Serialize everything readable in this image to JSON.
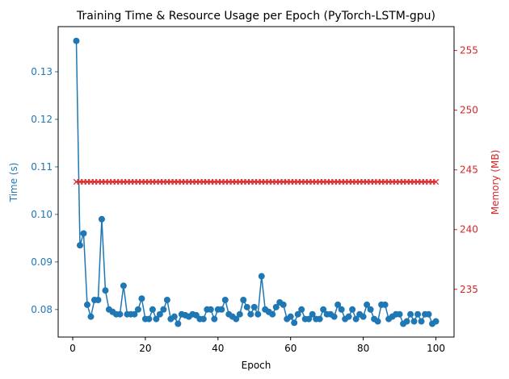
{
  "chart_data": {
    "type": "line",
    "title": "Training Time & Resource Usage per Epoch (PyTorch-LSTM-gpu)",
    "xlabel": "Epoch",
    "ylabel_left": "Time (s)",
    "ylabel_right": "Memory (MB)",
    "xlim": [
      -4,
      105
    ],
    "ylim_left": [
      0.0742,
      0.1395
    ],
    "ylim_right": [
      231.0,
      257.0
    ],
    "x_ticks": [
      0,
      20,
      40,
      60,
      80,
      100
    ],
    "y_left_ticks": [
      0.08,
      0.09,
      0.1,
      0.11,
      0.12,
      0.13
    ],
    "y_right_ticks": [
      235,
      240,
      245,
      250,
      255
    ],
    "colors": {
      "time": "#1f77b4",
      "memory": "#d62728",
      "axis": "#000000"
    },
    "x": [
      1,
      2,
      3,
      4,
      5,
      6,
      7,
      8,
      9,
      10,
      11,
      12,
      13,
      14,
      15,
      16,
      17,
      18,
      19,
      20,
      21,
      22,
      23,
      24,
      25,
      26,
      27,
      28,
      29,
      30,
      31,
      32,
      33,
      34,
      35,
      36,
      37,
      38,
      39,
      40,
      41,
      42,
      43,
      44,
      45,
      46,
      47,
      48,
      49,
      50,
      51,
      52,
      53,
      54,
      55,
      56,
      57,
      58,
      59,
      60,
      61,
      62,
      63,
      64,
      65,
      66,
      67,
      68,
      69,
      70,
      71,
      72,
      73,
      74,
      75,
      76,
      77,
      78,
      79,
      80,
      81,
      82,
      83,
      84,
      85,
      86,
      87,
      88,
      89,
      90,
      91,
      92,
      93,
      94,
      95,
      96,
      97,
      98,
      99,
      100
    ],
    "series": [
      {
        "name": "Time (s)",
        "axis": "left",
        "marker": "circle",
        "values": [
          0.1365,
          0.0935,
          0.096,
          0.081,
          0.0785,
          0.082,
          0.082,
          0.099,
          0.084,
          0.08,
          0.0795,
          0.079,
          0.079,
          0.085,
          0.079,
          0.079,
          0.079,
          0.08,
          0.0823,
          0.078,
          0.078,
          0.08,
          0.078,
          0.079,
          0.08,
          0.082,
          0.078,
          0.0785,
          0.077,
          0.079,
          0.0788,
          0.0785,
          0.079,
          0.0788,
          0.078,
          0.078,
          0.08,
          0.08,
          0.078,
          0.08,
          0.08,
          0.082,
          0.079,
          0.0785,
          0.078,
          0.079,
          0.082,
          0.0805,
          0.079,
          0.0805,
          0.079,
          0.087,
          0.08,
          0.0795,
          0.079,
          0.0805,
          0.0815,
          0.081,
          0.078,
          0.0785,
          0.0772,
          0.079,
          0.08,
          0.078,
          0.078,
          0.079,
          0.078,
          0.078,
          0.08,
          0.079,
          0.079,
          0.0785,
          0.081,
          0.08,
          0.078,
          0.0785,
          0.08,
          0.078,
          0.079,
          0.0785,
          0.081,
          0.08,
          0.078,
          0.0775,
          0.081,
          0.081,
          0.078,
          0.0785,
          0.079,
          0.079,
          0.077,
          0.0775,
          0.079,
          0.0775,
          0.079,
          0.0775,
          0.079,
          0.079,
          0.077,
          0.0775
        ]
      },
      {
        "name": "Memory (MB)",
        "axis": "right",
        "marker": "x",
        "values": [
          244,
          244,
          244,
          244,
          244,
          244,
          244,
          244,
          244,
          244,
          244,
          244,
          244,
          244,
          244,
          244,
          244,
          244,
          244,
          244,
          244,
          244,
          244,
          244,
          244,
          244,
          244,
          244,
          244,
          244,
          244,
          244,
          244,
          244,
          244,
          244,
          244,
          244,
          244,
          244,
          244,
          244,
          244,
          244,
          244,
          244,
          244,
          244,
          244,
          244,
          244,
          244,
          244,
          244,
          244,
          244,
          244,
          244,
          244,
          244,
          244,
          244,
          244,
          244,
          244,
          244,
          244,
          244,
          244,
          244,
          244,
          244,
          244,
          244,
          244,
          244,
          244,
          244,
          244,
          244,
          244,
          244,
          244,
          244,
          244,
          244,
          244,
          244,
          244,
          244,
          244,
          244,
          244,
          244,
          244,
          244,
          244,
          244,
          244,
          244
        ]
      }
    ]
  }
}
